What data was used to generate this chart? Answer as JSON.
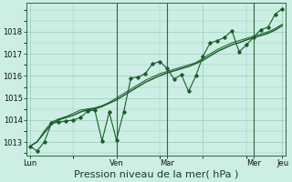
{
  "xlabel": "Pression niveau de la mer( hPa )",
  "bg_color": "#cceee4",
  "line_color": "#1a5c2a",
  "grid_color": "#99ccbb",
  "vline_color": "#336644",
  "ylim": [
    1012.4,
    1019.3
  ],
  "series": [
    [
      1012.8,
      1012.6,
      1013.0,
      1013.85,
      1013.9,
      1013.95,
      1014.0,
      1014.1,
      1014.4,
      1014.45,
      1013.05,
      1014.35,
      1013.1,
      1014.35,
      1015.9,
      1015.95,
      1016.1,
      1016.55,
      1016.65,
      1016.35,
      1015.85,
      1016.05,
      1015.3,
      1016.0,
      1016.9,
      1017.5,
      1017.6,
      1017.75,
      1018.05,
      1017.1,
      1017.4,
      1017.75,
      1018.1,
      1018.2,
      1018.8,
      1019.05
    ],
    [
      1012.8,
      1013.0,
      1013.5,
      1013.9,
      1014.05,
      1014.15,
      1014.3,
      1014.45,
      1014.5,
      1014.55,
      1014.65,
      1014.8,
      1015.0,
      1015.2,
      1015.4,
      1015.6,
      1015.8,
      1015.95,
      1016.1,
      1016.2,
      1016.3,
      1016.4,
      1016.5,
      1016.6,
      1016.8,
      1017.0,
      1017.2,
      1017.35,
      1017.5,
      1017.6,
      1017.7,
      1017.8,
      1017.9,
      1018.0,
      1018.15,
      1018.35
    ],
    [
      1012.8,
      1013.0,
      1013.4,
      1013.8,
      1014.0,
      1014.1,
      1014.2,
      1014.35,
      1014.45,
      1014.5,
      1014.6,
      1014.75,
      1014.9,
      1015.1,
      1015.3,
      1015.5,
      1015.7,
      1015.85,
      1016.0,
      1016.12,
      1016.22,
      1016.32,
      1016.42,
      1016.55,
      1016.7,
      1016.9,
      1017.1,
      1017.25,
      1017.4,
      1017.5,
      1017.62,
      1017.72,
      1017.82,
      1017.92,
      1018.07,
      1018.27
    ],
    [
      1012.8,
      1013.02,
      1013.42,
      1013.82,
      1014.02,
      1014.12,
      1014.22,
      1014.37,
      1014.47,
      1014.52,
      1014.62,
      1014.77,
      1014.92,
      1015.12,
      1015.32,
      1015.52,
      1015.72,
      1015.87,
      1016.02,
      1016.14,
      1016.24,
      1016.34,
      1016.44,
      1016.57,
      1016.72,
      1016.92,
      1017.12,
      1017.27,
      1017.42,
      1017.52,
      1017.64,
      1017.74,
      1017.84,
      1017.94,
      1018.09,
      1018.29
    ]
  ],
  "n_points": 36,
  "xtick_positions": [
    0,
    12,
    19,
    24,
    31,
    35
  ],
  "xtick_labels": [
    "Lun",
    "Ven",
    "Mar",
    "",
    "Mer",
    "Jeu"
  ],
  "vline_positions": [
    12,
    19,
    31
  ],
  "yticks": [
    1013,
    1014,
    1015,
    1016,
    1017,
    1018
  ],
  "ytick_fontsize": 6,
  "xtick_fontsize": 6,
  "xlabel_fontsize": 8
}
